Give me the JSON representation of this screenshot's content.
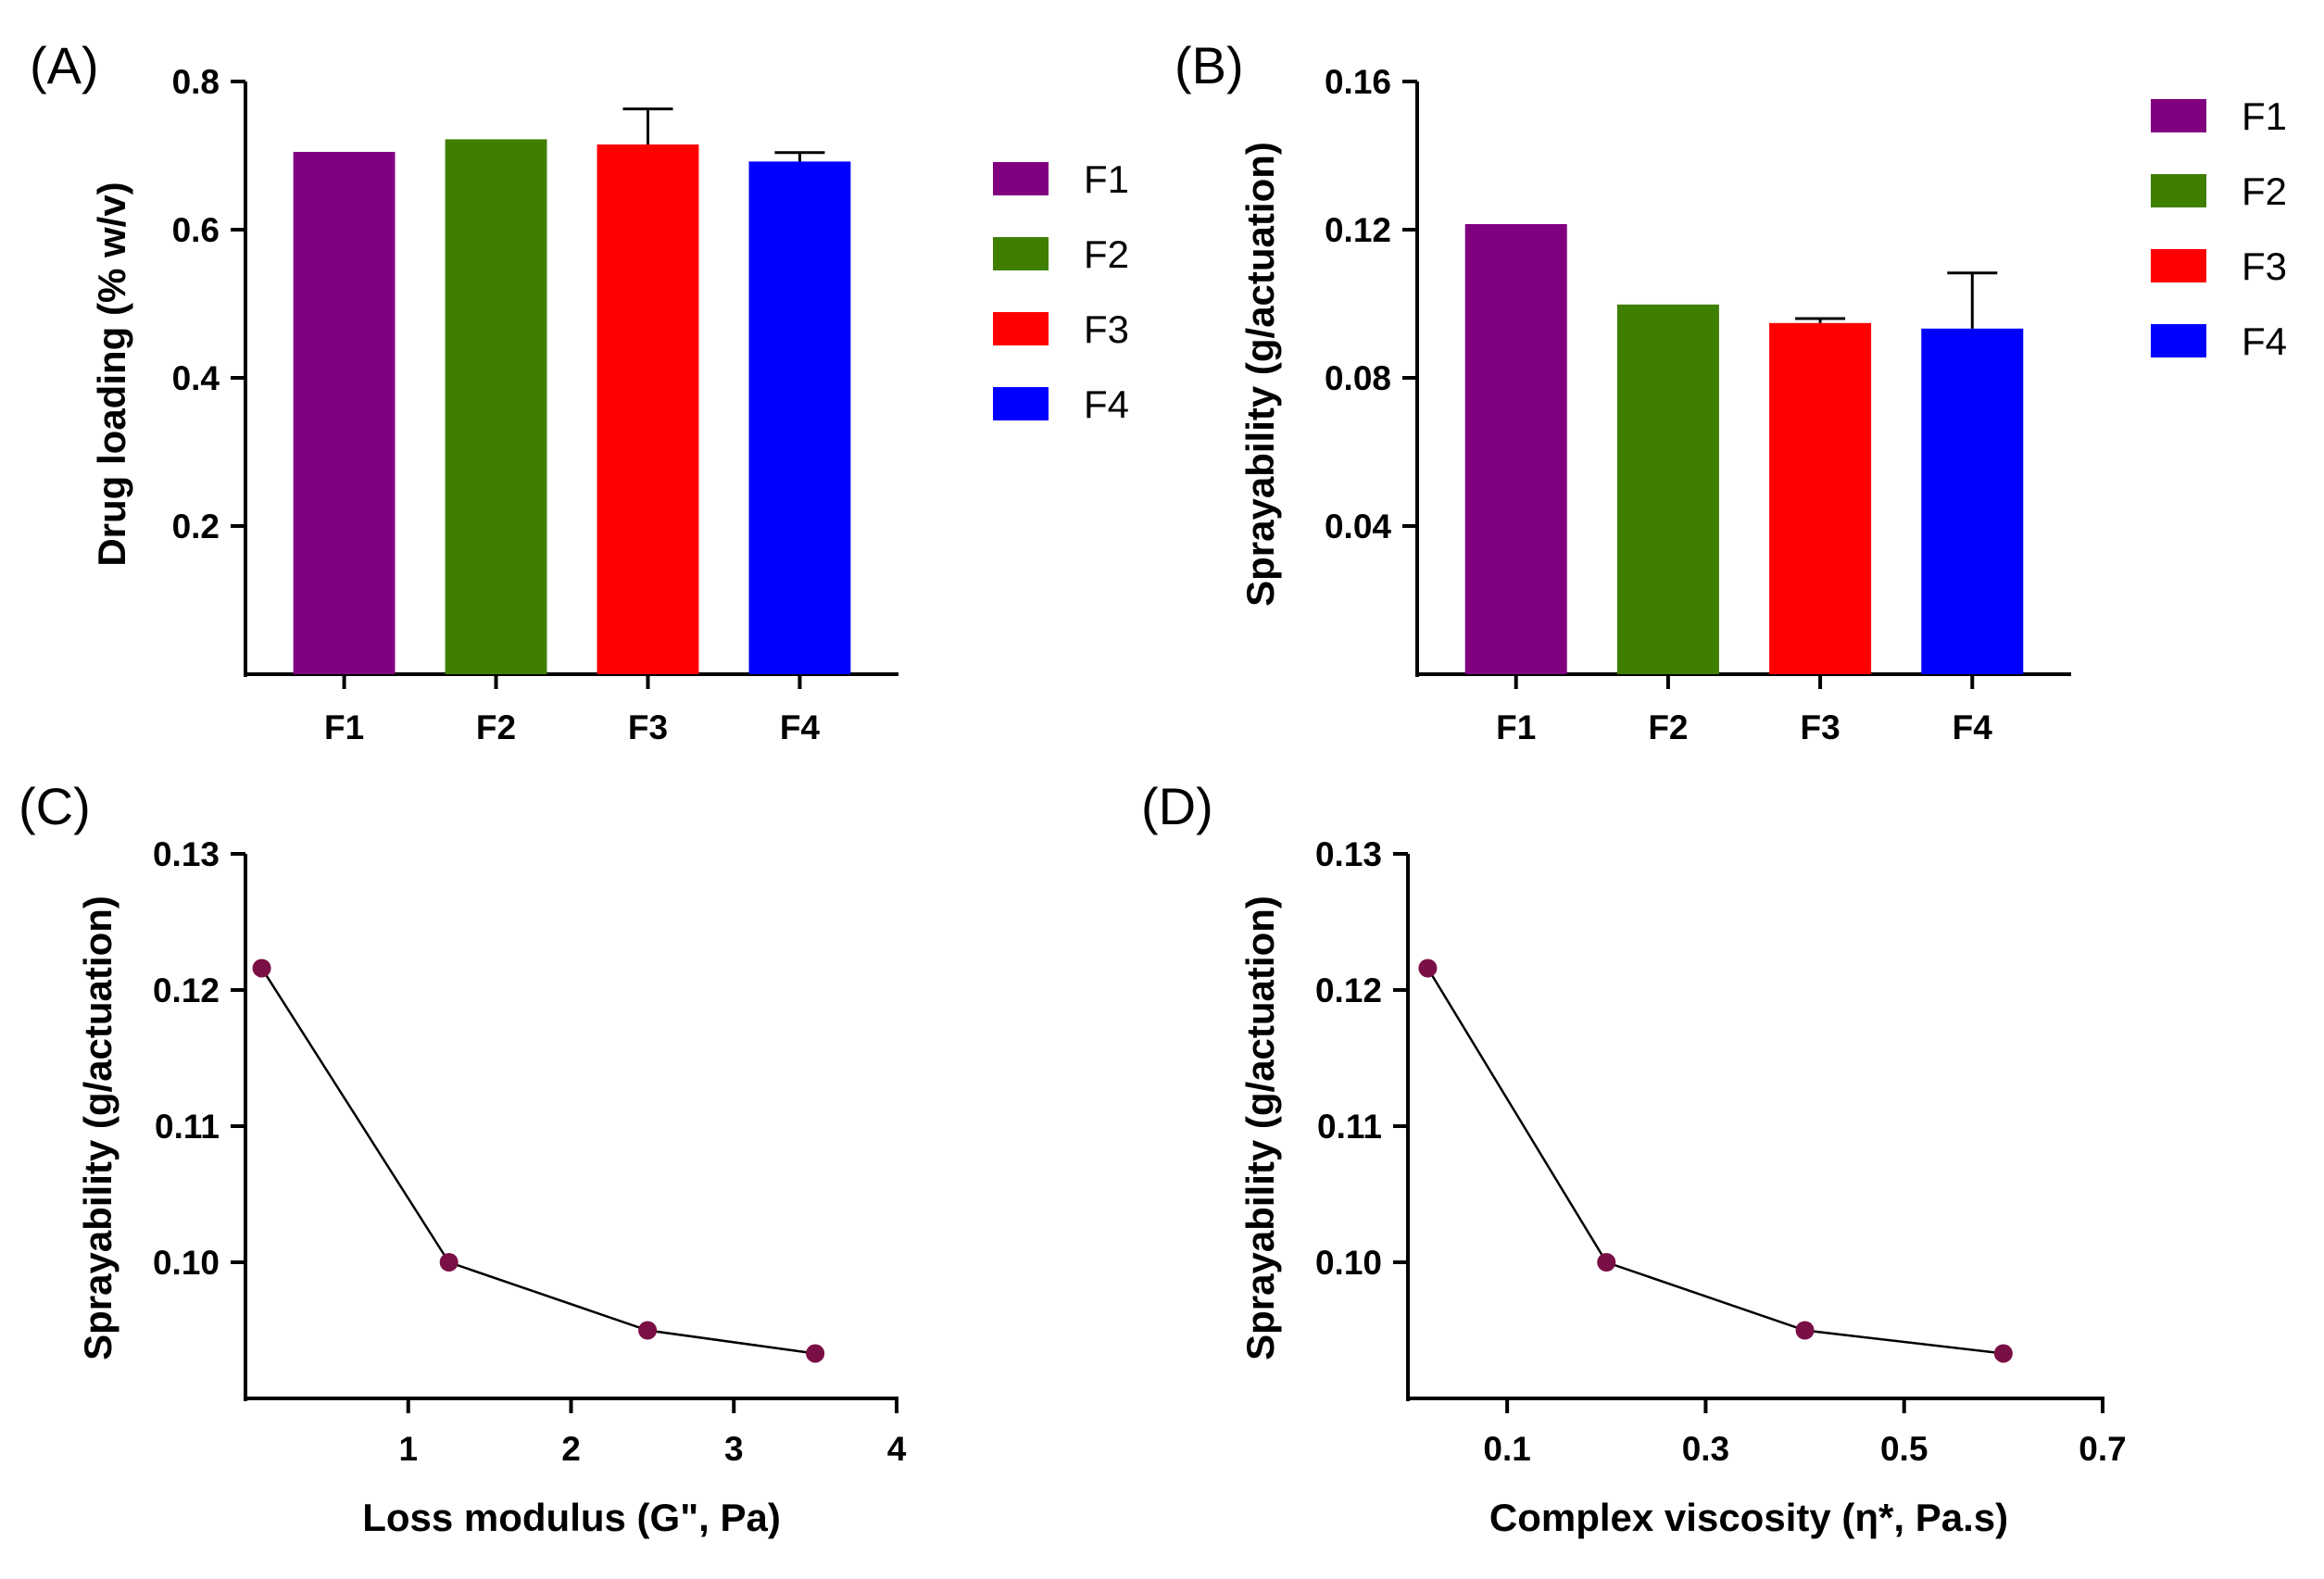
{
  "chart_data": [
    {
      "panel": "(A)",
      "type": "bar",
      "categories": [
        "F1",
        "F2",
        "F3",
        "F4"
      ],
      "values": [
        0.705,
        0.722,
        0.715,
        0.692
      ],
      "errors": [
        0.0,
        0.0,
        0.048,
        0.012
      ],
      "colors": [
        "#800080",
        "#3f7f00",
        "#ff0000",
        "#0000ff"
      ],
      "ylabel": "Drug loading (% w/v)",
      "xlabel": "",
      "ylim": [
        0,
        0.8
      ],
      "yticks": [
        0.2,
        0.4,
        0.6,
        0.8
      ],
      "ytick_labels": [
        "0.2",
        "0.4",
        "0.6",
        "0.8"
      ],
      "legend": [
        "F1",
        "F2",
        "F3",
        "F4"
      ],
      "legend_position": "right"
    },
    {
      "panel": "(B)",
      "type": "bar",
      "categories": [
        "F1",
        "F2",
        "F3",
        "F4"
      ],
      "values": [
        0.1215,
        0.0998,
        0.0948,
        0.0933
      ],
      "errors": [
        0.0,
        0.0,
        0.0012,
        0.015
      ],
      "colors": [
        "#800080",
        "#3f7f00",
        "#ff0000",
        "#0000ff"
      ],
      "ylabel": "Sprayability (g/actuation)",
      "xlabel": "",
      "ylim": [
        0,
        0.16
      ],
      "yticks": [
        0.04,
        0.08,
        0.12,
        0.16
      ],
      "ytick_labels": [
        "0.04",
        "0.08",
        "0.12",
        "0.16"
      ],
      "legend": [
        "F1",
        "F2",
        "F3",
        "F4"
      ],
      "legend_position": "right"
    },
    {
      "panel": "(C)",
      "type": "line",
      "x": [
        0.1,
        1.25,
        2.47,
        3.5
      ],
      "y": [
        0.1216,
        0.1,
        0.095,
        0.0933
      ],
      "xlabel": "Loss modulus (G\", Pa)",
      "ylabel": "Sprayability (g/actuation)",
      "xlim": [
        0,
        4
      ],
      "ylim": [
        0.09,
        0.13
      ],
      "xticks": [
        1,
        2,
        3,
        4
      ],
      "xtick_labels": [
        "1",
        "2",
        "3",
        "4"
      ],
      "yticks": [
        0.1,
        0.11,
        0.12,
        0.13
      ],
      "ytick_labels": [
        "0.10",
        "0.11",
        "0.12",
        "0.13"
      ],
      "marker_color": "#7a0f45"
    },
    {
      "panel": "(D)",
      "type": "line",
      "x": [
        0.02,
        0.2,
        0.4,
        0.6
      ],
      "y": [
        0.1216,
        0.1,
        0.095,
        0.0933
      ],
      "xlabel": "Complex viscosity (η*, Pa.s)",
      "ylabel": "Sprayability (g/actuation)",
      "xlim": [
        0,
        0.7
      ],
      "ylim": [
        0.09,
        0.13
      ],
      "xticks": [
        0.1,
        0.3,
        0.5,
        0.7
      ],
      "xtick_labels": [
        "0.1",
        "0.3",
        "0.5",
        "0.7"
      ],
      "yticks": [
        0.1,
        0.11,
        0.12,
        0.13
      ],
      "ytick_labels": [
        "0.10",
        "0.11",
        "0.12",
        "0.13"
      ],
      "marker_color": "#7a0f45"
    }
  ]
}
